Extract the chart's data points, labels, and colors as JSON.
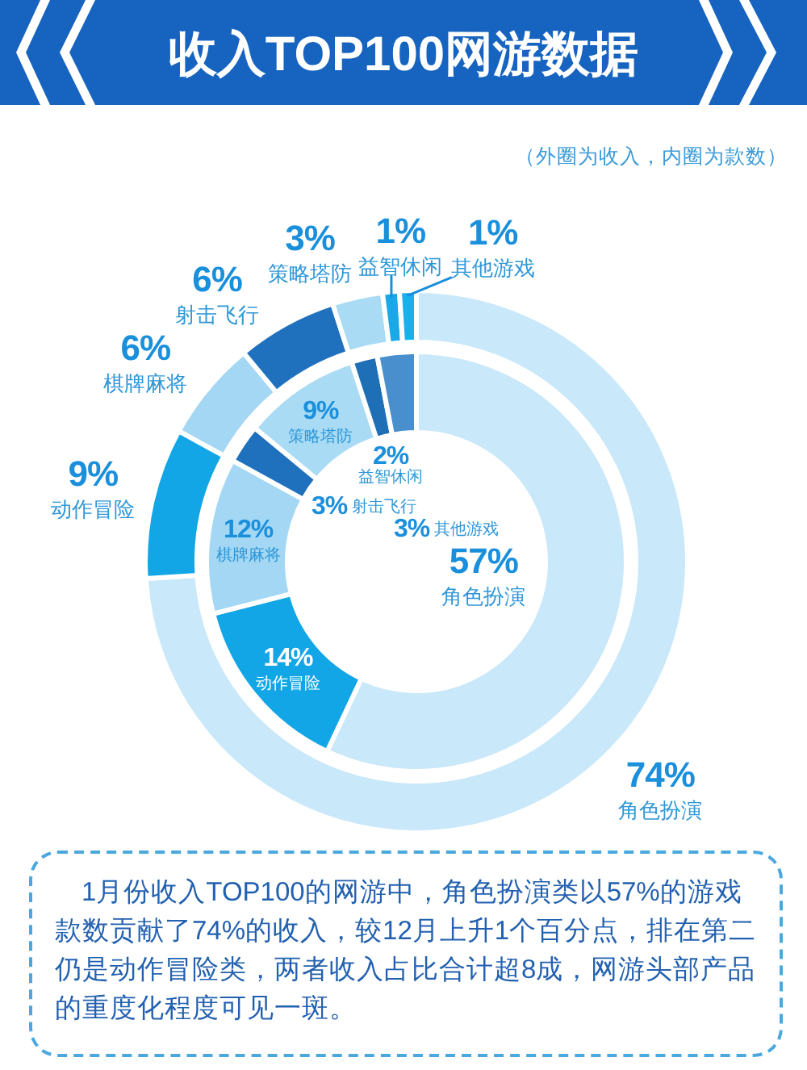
{
  "chart_data": {
    "type": "donut",
    "title": "收入TOP100网游数据",
    "subtitle": "（外圈为收入，内圈为款数）",
    "categories": [
      "角色扮演",
      "动作冒险",
      "棋牌麻将",
      "射击飞行",
      "策略塔防",
      "益智休闲",
      "其他游戏"
    ],
    "series": [
      {
        "values": [
          74,
          9,
          6,
          6,
          3,
          1,
          1
        ],
        "colors": [
          "#c9e8f9",
          "#12a6e6",
          "#a3d7f4",
          "#1f70bd",
          "#a9dbf5",
          "#19a8e8",
          "#1ab0ee"
        ],
        "value_labels": [
          "74%",
          "9%",
          "6%",
          "6%",
          "3%",
          "1%",
          "1%"
        ]
      },
      {
        "values": [
          57,
          14,
          12,
          3,
          9,
          2,
          3
        ],
        "colors": [
          "#c9e8f9",
          "#12a6e6",
          "#a3d7f4",
          "#1f70bd",
          "#a9dbf5",
          "#1f6fb7",
          "#4a8fcd"
        ],
        "value_labels": [
          "57%",
          "14%",
          "12%",
          "3%",
          "9%",
          "2%",
          "3%"
        ]
      }
    ],
    "annotations": [
      "1月份收入TOP100的网游中，角色扮演类以57%的游戏款数贡献了74%的收入，较12月上升1个百分点，排在第二仍是动作冒险类，两者收入占比合计超8成，网游头部产品的重度化程度可见一斑。"
    ]
  }
}
